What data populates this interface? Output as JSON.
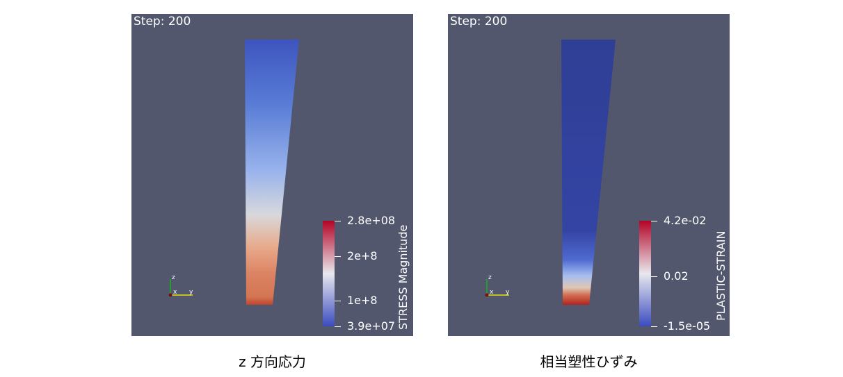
{
  "panels": [
    {
      "step_label": "Step: 200",
      "colorbar": {
        "title": "STRESS Magnitude",
        "tick_labels": [
          "2.8e+08",
          "2e+8",
          "1e+8",
          "3.9e+07"
        ],
        "colors": [
          "#b40426",
          "#f7f7f7",
          "#3b4cc0"
        ]
      },
      "axes": {
        "z": "z",
        "x": "x",
        "y": "y"
      },
      "caption": "z 方向応力"
    },
    {
      "step_label": "Step: 200",
      "colorbar": {
        "title": "PLASTIC-STRAIN",
        "tick_labels": [
          "4.2e-02",
          "0.02",
          "-1.5e-05"
        ],
        "colors": [
          "#b40426",
          "#f7f7f7",
          "#3b4cc0"
        ]
      },
      "axes": {
        "z": "z",
        "x": "x",
        "y": "y"
      },
      "caption": "相当塑性ひずみ"
    }
  ]
}
